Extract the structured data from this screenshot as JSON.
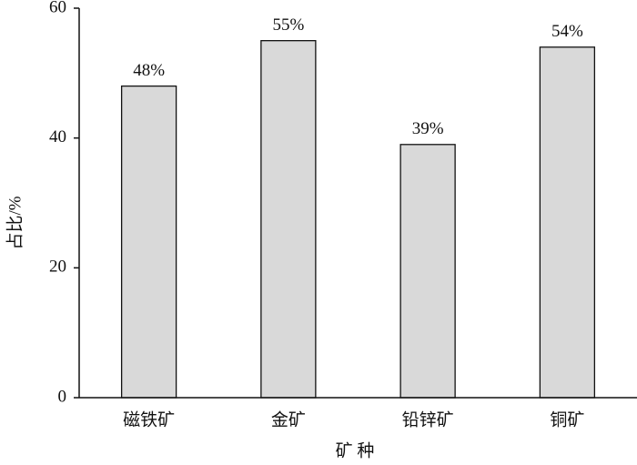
{
  "chart_data": {
    "type": "bar",
    "categories": [
      "磁铁矿",
      "金矿",
      "铅锌矿",
      "铜矿"
    ],
    "values": [
      48,
      55,
      39,
      54
    ],
    "value_labels": [
      "48%",
      "55%",
      "39%",
      "54%"
    ],
    "color": "#d9d9d9",
    "xlabel": "矿 种",
    "ylabel": "占比/%",
    "ylim": [
      0,
      60
    ],
    "yticks": [
      0,
      20,
      40,
      60
    ],
    "grid": false
  }
}
